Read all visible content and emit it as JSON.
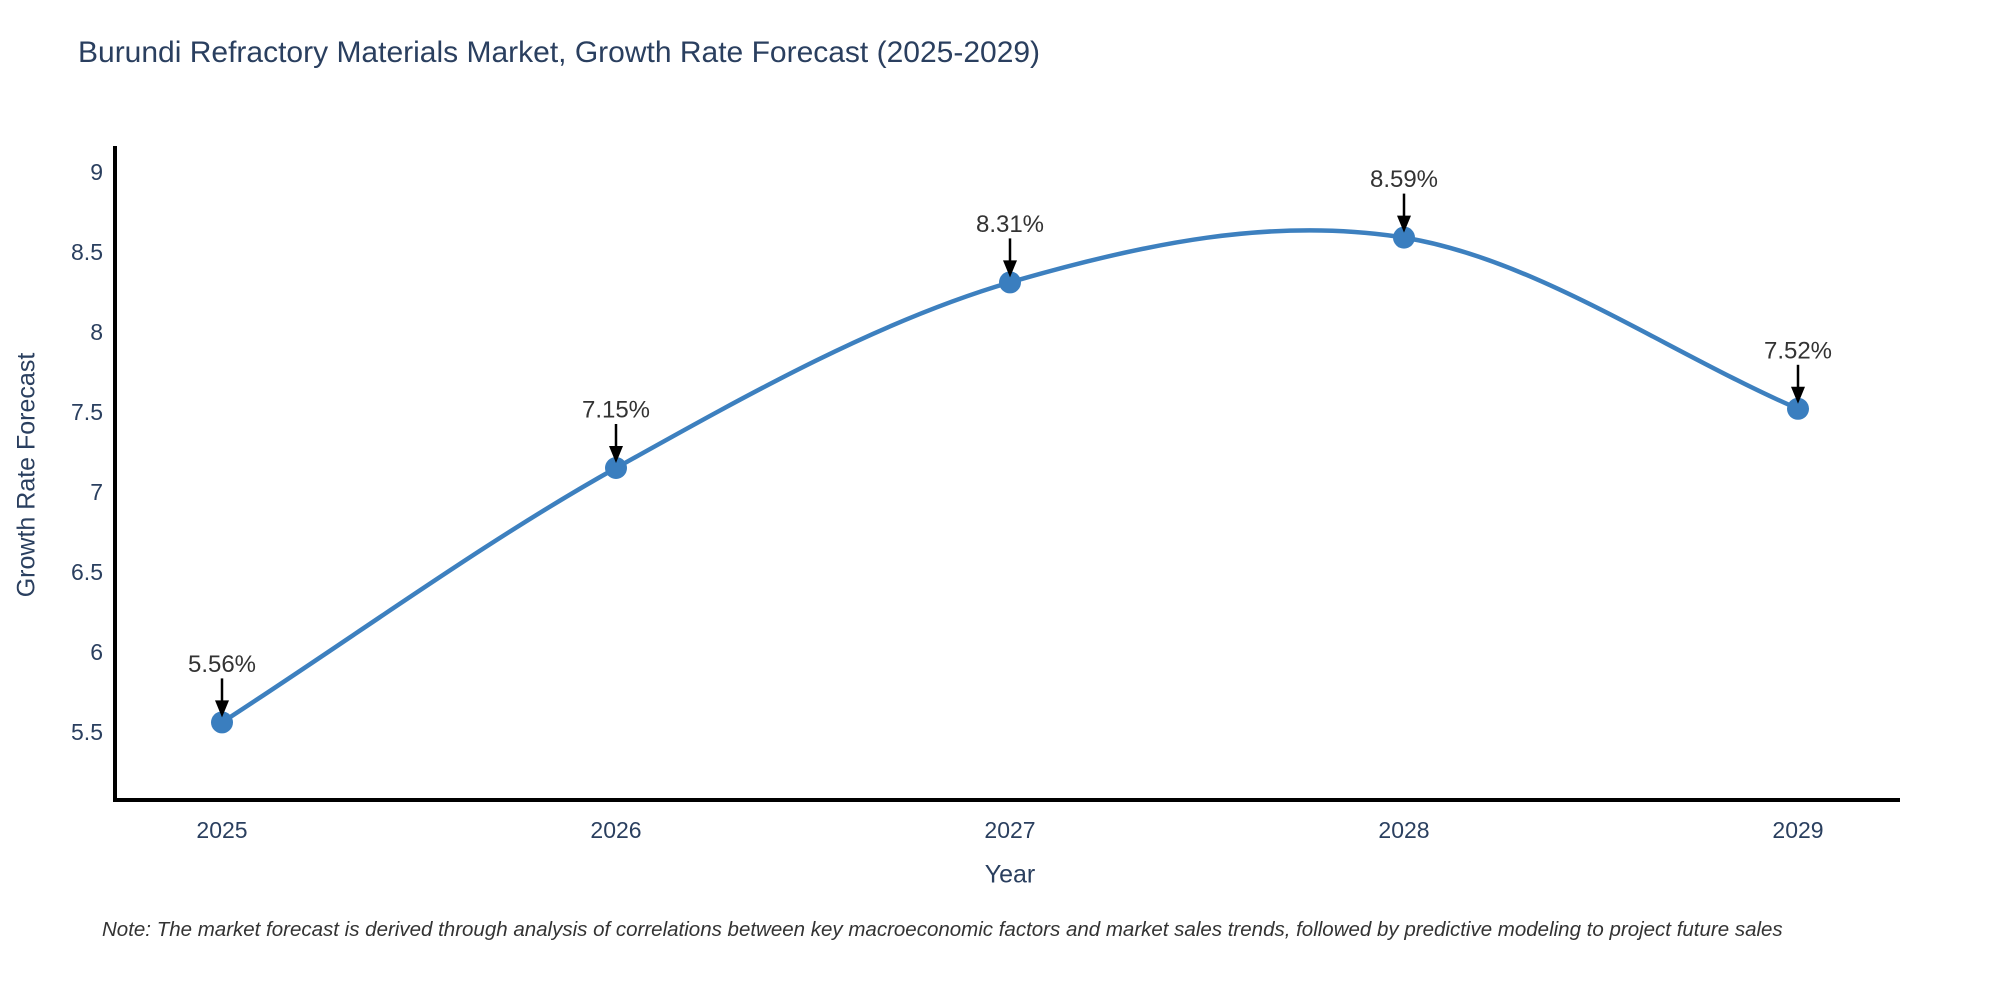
{
  "title": "Burundi Refractory Materials Market, Growth Rate Forecast (2025-2029)",
  "note": "Note: The market forecast is derived through analysis of correlations between key macroeconomic factors and market sales trends, followed by predictive modeling to project future sales",
  "chart_data": {
    "type": "line",
    "title": "Burundi Refractory Materials Market, Growth Rate Forecast (2025-2029)",
    "xlabel": "Year",
    "ylabel": "Growth Rate Forecast",
    "categories": [
      "2025",
      "2026",
      "2027",
      "2028",
      "2029"
    ],
    "series": [
      {
        "name": "Growth Rate Forecast",
        "values": [
          5.56,
          7.15,
          8.31,
          8.59,
          7.52
        ],
        "point_labels": [
          "5.56%",
          "7.15%",
          "8.31%",
          "8.59%",
          "7.52%"
        ]
      }
    ],
    "ylim": [
      5.06,
      9.15
    ],
    "yticks": [
      5.5,
      6,
      6.5,
      7,
      7.5,
      8,
      8.5,
      9
    ],
    "ytick_labels": [
      "5.5",
      "6",
      "6.5",
      "7",
      "7.5",
      "8",
      "8.5",
      "9"
    ],
    "grid": false,
    "legend_position": "none",
    "line_shape": "spline",
    "markers": true,
    "annotations_have_arrows": true,
    "colors": {
      "line": "#3d80bf",
      "marker": "#3a7ebf",
      "annotation_text": "#333333",
      "arrow": "#000000",
      "axis_line": "#000000",
      "heading_text": "#2a3f5f",
      "tick_text": "#2a3f5f",
      "background": "#ffffff"
    }
  }
}
